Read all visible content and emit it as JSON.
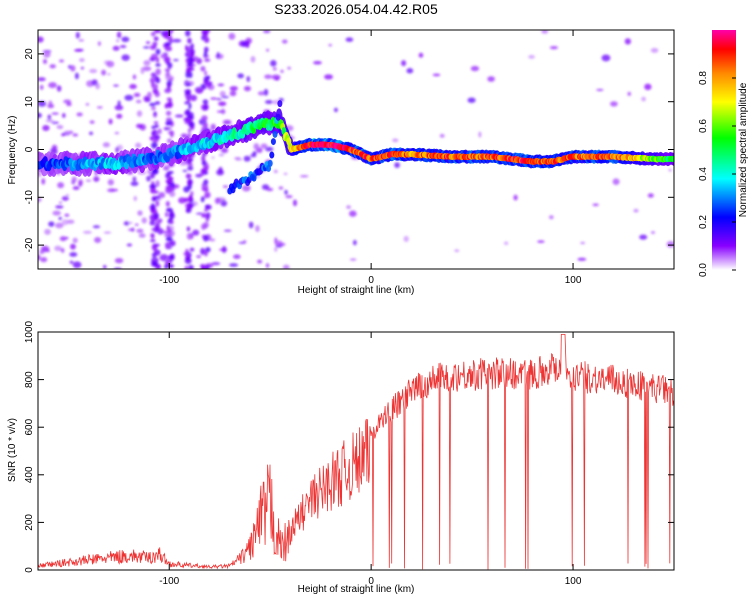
{
  "title": "S233.2026.054.04.42.R05",
  "chart_data": [
    {
      "type": "heatmap",
      "xlabel": "Height of straight line (km)",
      "ylabel": "Frequency (Hz)",
      "xlim": [
        -165,
        150
      ],
      "ylim": [
        -25,
        25
      ],
      "xticks": [
        -100,
        0,
        100
      ],
      "yticks": [
        -20,
        -10,
        0,
        10,
        20
      ],
      "colorbar": {
        "label": "Normalized spectral amplitude",
        "range": [
          0,
          1
        ],
        "ticks": [
          0.0,
          0.2,
          0.4,
          0.6,
          0.8
        ],
        "tick_labels": [
          "0.0",
          "0.2",
          "0.4",
          "0.6",
          "0.8"
        ],
        "colors": [
          "#ffffff",
          "#8800ff",
          "#0000ff",
          "#00ffff",
          "#00ff00",
          "#ffff00",
          "#ff8800",
          "#ff0000",
          "#ff00aa"
        ]
      },
      "ridge": {
        "x": [
          -165,
          -150,
          -130,
          -110,
          -100,
          -85,
          -70,
          -55,
          -45,
          -40,
          -30,
          -20,
          -10,
          0,
          10,
          20,
          40,
          60,
          80,
          90,
          100,
          120,
          140,
          150
        ],
        "freq": [
          -3,
          -3,
          -3,
          -2,
          -1,
          1,
          3,
          5,
          6,
          0,
          1,
          1,
          0,
          -2,
          -1,
          -1,
          -1.5,
          -1.5,
          -2.5,
          -2.5,
          -1.5,
          -1.5,
          -2,
          -2
        ],
        "amplitude": [
          0.25,
          0.3,
          0.35,
          0.3,
          0.3,
          0.35,
          0.4,
          0.45,
          0.5,
          0.6,
          0.9,
          0.95,
          0.85,
          0.8,
          0.85,
          0.75,
          0.8,
          0.8,
          0.85,
          0.8,
          0.8,
          0.8,
          0.55,
          0.45
        ]
      },
      "branch": {
        "x": [
          -70,
          -60,
          -50,
          -45
        ],
        "freq": [
          -8,
          -6,
          -3,
          10
        ]
      }
    },
    {
      "type": "line",
      "xlabel": "Height of straight line (km)",
      "ylabel": "SNR (10 * v/v)",
      "xlim": [
        -165,
        150
      ],
      "ylim": [
        0,
        1000
      ],
      "xticks": [
        -100,
        0,
        100
      ],
      "yticks": [
        0,
        200,
        400,
        600,
        800,
        1000
      ],
      "color": "#ee3333",
      "envelope": {
        "x": [
          -165,
          -140,
          -120,
          -110,
          -105,
          -100,
          -80,
          -70,
          -62,
          -55,
          -50,
          -45,
          -40,
          -30,
          -20,
          -10,
          0,
          10,
          20,
          30,
          40,
          60,
          80,
          95,
          100,
          120,
          150
        ],
        "y": [
          20,
          50,
          70,
          60,
          80,
          30,
          15,
          20,
          80,
          300,
          420,
          150,
          200,
          350,
          450,
          520,
          600,
          700,
          780,
          830,
          850,
          860,
          860,
          900,
          850,
          830,
          780
        ]
      },
      "dropouts_after_x": 0
    }
  ]
}
